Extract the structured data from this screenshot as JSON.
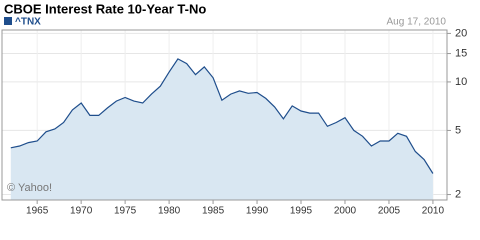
{
  "chart_data": {
    "type": "area",
    "title": "CBOE Interest Rate 10-Year T-No",
    "date": "Aug 17, 2010",
    "watermark": "© Yahoo!",
    "log_scale": true,
    "grid": true,
    "fill_color": "#d9e7f2",
    "x": [
      1962,
      1963,
      1964,
      1965,
      1966,
      1967,
      1968,
      1969,
      1970,
      1971,
      1972,
      1973,
      1974,
      1975,
      1976,
      1977,
      1978,
      1979,
      1980,
      1981,
      1982,
      1983,
      1984,
      1985,
      1986,
      1987,
      1988,
      1989,
      1990,
      1991,
      1992,
      1993,
      1994,
      1995,
      1996,
      1997,
      1998,
      1999,
      2000,
      2001,
      2002,
      2003,
      2004,
      2005,
      2006,
      2007,
      2008,
      2009,
      2010
    ],
    "series": [
      {
        "name": "^TNX",
        "color": "#1f4e8c",
        "values": [
          3.9,
          4.0,
          4.2,
          4.3,
          4.9,
          5.1,
          5.6,
          6.7,
          7.4,
          6.2,
          6.2,
          6.9,
          7.6,
          8.0,
          7.6,
          7.4,
          8.4,
          9.4,
          11.5,
          13.9,
          13.0,
          11.1,
          12.4,
          10.6,
          7.7,
          8.4,
          8.8,
          8.5,
          8.6,
          7.9,
          7.0,
          5.9,
          7.1,
          6.6,
          6.4,
          6.4,
          5.3,
          5.6,
          6.0,
          5.0,
          4.6,
          4.0,
          4.3,
          4.3,
          4.8,
          4.6,
          3.7,
          3.3,
          2.7
        ]
      }
    ],
    "xlim": [
      1961,
      2011.6
    ],
    "xticks": [
      1965,
      1970,
      1975,
      1980,
      1985,
      1990,
      1995,
      2000,
      2005,
      2010
    ],
    "ylim": [
      1.85,
      21
    ],
    "yticks": [
      2,
      5,
      10,
      15,
      20
    ]
  }
}
